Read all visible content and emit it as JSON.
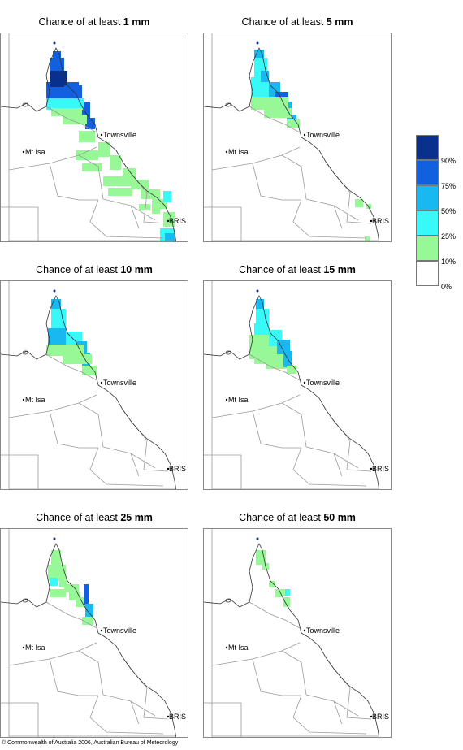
{
  "panels": [
    {
      "prefix": "Chance of at least",
      "amount": "1 mm"
    },
    {
      "prefix": "Chance of at least",
      "amount": "5 mm"
    },
    {
      "prefix": "Chance of at least",
      "amount": "10 mm"
    },
    {
      "prefix": "Chance of at least",
      "amount": "15 mm"
    },
    {
      "prefix": "Chance of at least",
      "amount": "25 mm"
    },
    {
      "prefix": "Chance of at least",
      "amount": "50 mm"
    }
  ],
  "places": {
    "townsville": "Townsville",
    "mt_isa": "Mt Isa",
    "brisbane": "BRIS"
  },
  "legend": {
    "labels": [
      "90%",
      "75%",
      "50%",
      "25%",
      "10%",
      "0%"
    ],
    "colors": [
      "#08308c",
      "#1060e0",
      "#18b8f0",
      "#38f8f8",
      "#98f898",
      "#ffffff"
    ]
  },
  "copyright": "© Commonwealth of Australia 2006, Australian Bureau of Meteorology"
}
